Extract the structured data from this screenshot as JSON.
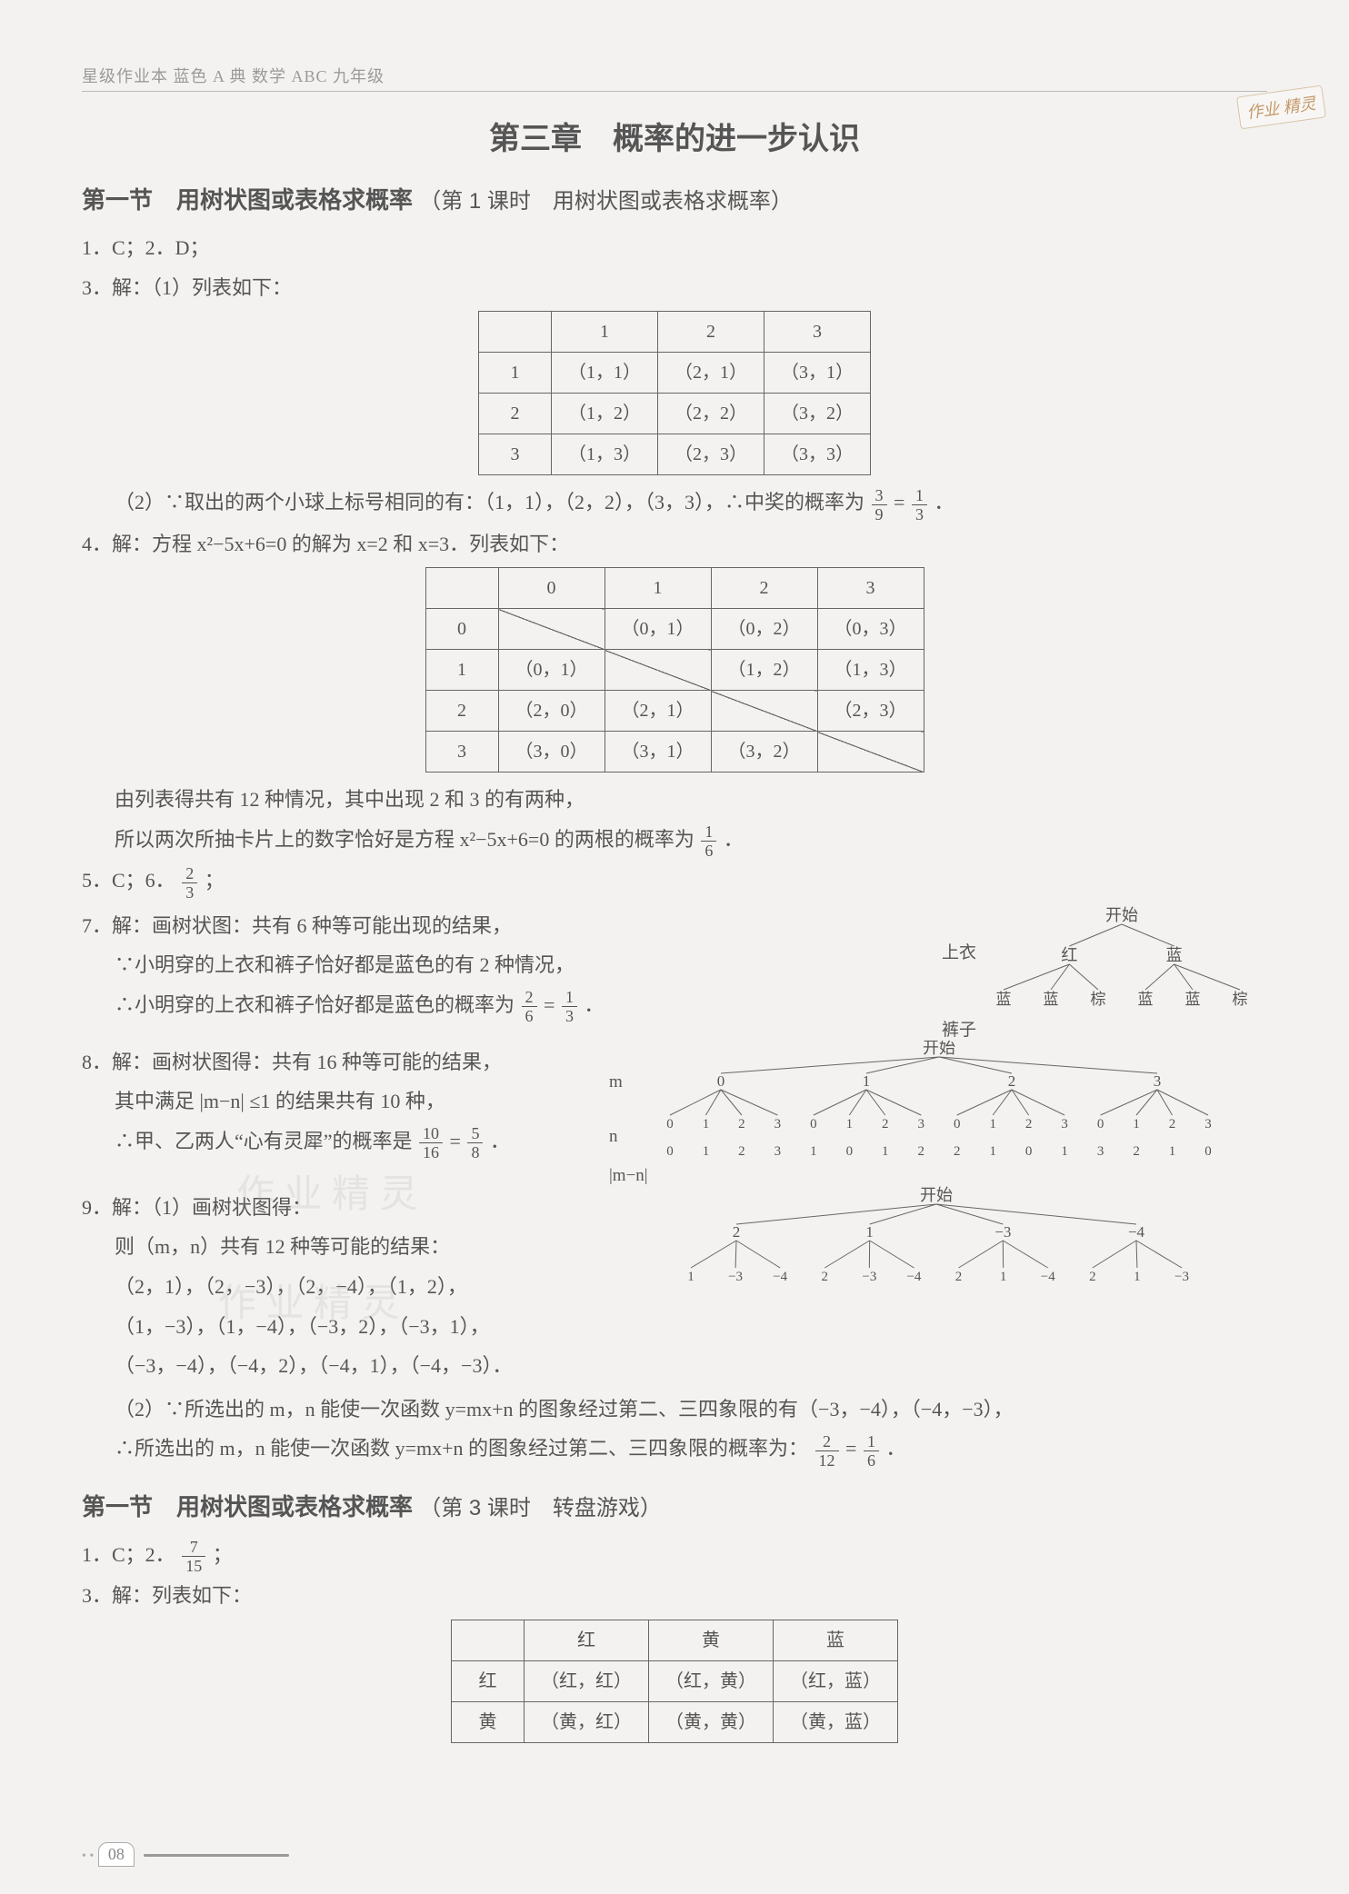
{
  "header": "星级作业本 蓝色 A 典 数学 ABC 九年级",
  "chapter_title": "第三章　概率的进一步认识",
  "stamp": "作业 精灵",
  "section1": {
    "title_main": "第一节　用树状图或表格求概率",
    "title_sub": "（第 1 课时　用树状图或表格求概率）",
    "line1": "1．C；2．D；",
    "line3_intro": "3．解：（1）列表如下：",
    "table1": {
      "col_headers": [
        "",
        "1",
        "2",
        "3"
      ],
      "rows": [
        [
          "1",
          "（1，1）",
          "（2，1）",
          "（3，1）"
        ],
        [
          "2",
          "（1，2）",
          "（2，2）",
          "（3，2）"
        ],
        [
          "3",
          "（1，3）",
          "（2，3）",
          "（3，3）"
        ]
      ]
    },
    "q3_p2_a": "（2）∵取出的两个小球上标号相同的有：（1，1），（2，2），（3，3），∴中奖的概率为",
    "q3_p2_frac1_num": "3",
    "q3_p2_frac1_den": "9",
    "q3_p2_eq": " = ",
    "q3_p2_frac2_num": "1",
    "q3_p2_frac2_den": "3",
    "q3_p2_end": "．",
    "q4_intro": "4．解：方程 x²−5x+6=0 的解为 x=2 和 x=3．列表如下：",
    "table2": {
      "col_headers": [
        "",
        "0",
        "1",
        "2",
        "3"
      ],
      "rows": [
        [
          "0",
          "DIAG",
          "（0，1）",
          "（0，2）",
          "（0，3）"
        ],
        [
          "1",
          "（0，1）",
          "DIAG",
          "（1，2）",
          "（1，3）"
        ],
        [
          "2",
          "（2，0）",
          "（2，1）",
          "DIAG",
          "（2，3）"
        ],
        [
          "3",
          "（3，0）",
          "（3，1）",
          "（3，2）",
          "DIAG"
        ]
      ]
    },
    "q4_after1": "由列表得共有 12 种情况，其中出现 2 和 3 的有两种，",
    "q4_after2a": "所以两次所抽卡片上的数字恰好是方程 x²−5x+6=0 的两根的概率为",
    "q4_frac_num": "1",
    "q4_frac_den": "6",
    "q4_after2b": "．",
    "line5_6a": "5．C；6．",
    "line5_6_frac_num": "2",
    "line5_6_frac_den": "3",
    "line5_6b": "；",
    "q7_l1": "7．解：画树状图：共有 6 种等可能出现的结果，",
    "q7_l2": "∵小明穿的上衣和裤子恰好都是蓝色的有 2 种情况，",
    "q7_l3a": "∴小明穿的上衣和裤子恰好都是蓝色的概率为",
    "q7_f1_num": "2",
    "q7_f1_den": "6",
    "q7_eq": " = ",
    "q7_f2_num": "1",
    "q7_f2_den": "3",
    "q7_l3b": "．",
    "q8_l1": "8．解：画树状图得：共有 16 种等可能的结果，",
    "q8_l2": "其中满足 |m−n| ≤1 的结果共有 10 种，",
    "q8_l3a": "∴甲、乙两人“心有灵犀”的概率是",
    "q8_f1_num": "10",
    "q8_f1_den": "16",
    "q8_eq": " = ",
    "q8_f2_num": "5",
    "q8_f2_den": "8",
    "q8_l3b": "．",
    "q9_l1": "9．解：（1）画树状图得：",
    "q9_l2": "则（m，n）共有 12 种等可能的结果：",
    "q9_l3": "（2，1），（2，−3），（2，−4），（1，2），",
    "q9_l4": "（1，−3），（1，−4），（−3，2），（−3，1），",
    "q9_l5": "（−3，−4），（−4，2），（−4，1），（−4，−3）．",
    "q9_p2a": "（2）∵所选出的 m，n 能使一次函数 y=mx+n 的图象经过第二、三四象限的有（−3，−4），（−4，−3），",
    "q9_p2b_a": "∴所选出的 m，n 能使一次函数 y=mx+n 的图象经过第二、三四象限的概率为：",
    "q9_f1_num": "2",
    "q9_f1_den": "12",
    "q9_eq": " = ",
    "q9_f2_num": "1",
    "q9_f2_den": "6",
    "q9_p2b_b": "．"
  },
  "tree7": {
    "title": "开始",
    "row1_label": "上衣",
    "row1": [
      "红",
      "蓝"
    ],
    "row2_label": "裤子",
    "row2": [
      "蓝",
      "蓝",
      "棕",
      "蓝",
      "蓝",
      "棕"
    ],
    "colors": {
      "line": "#666",
      "text": "#555"
    }
  },
  "tree8": {
    "title": "开始",
    "labels": [
      "m",
      "n",
      "|m−n|"
    ],
    "m": [
      "0",
      "1",
      "2",
      "3"
    ],
    "n": [
      "0",
      "1",
      "2",
      "3",
      "0",
      "1",
      "2",
      "3",
      "0",
      "1",
      "2",
      "3",
      "0",
      "1",
      "2",
      "3"
    ],
    "abs": [
      "0",
      "1",
      "2",
      "3",
      "1",
      "0",
      "1",
      "2",
      "2",
      "1",
      "0",
      "1",
      "3",
      "2",
      "1",
      "0"
    ],
    "colors": {
      "line": "#666",
      "text": "#555"
    }
  },
  "tree9": {
    "title": "开始",
    "level1": [
      "2",
      "1",
      "−3",
      "−4"
    ],
    "level2": [
      [
        "1",
        "−3",
        "−4"
      ],
      [
        "2",
        "−3",
        "−4"
      ],
      [
        "2",
        "1",
        "−4"
      ],
      [
        "2",
        "1",
        "−3"
      ]
    ],
    "colors": {
      "line": "#666",
      "text": "#555"
    }
  },
  "section2": {
    "title_main": "第一节　用树状图或表格求概率",
    "title_sub": "（第 3 课时　转盘游戏）",
    "line1a": "1．C；2．",
    "line1_frac_num": "7",
    "line1_frac_den": "15",
    "line1b": "；",
    "line3": "3．解：列表如下：",
    "table3": {
      "col_headers": [
        "",
        "红",
        "黄",
        "蓝"
      ],
      "rows": [
        [
          "红",
          "（红，红）",
          "（红，黄）",
          "（红，蓝）"
        ],
        [
          "黄",
          "（黄，红）",
          "（黄，黄）",
          "（黄，蓝）"
        ]
      ]
    }
  },
  "page_number": "08",
  "watermarks": [
    "作 业 精 灵",
    "作 业 精 灵"
  ]
}
